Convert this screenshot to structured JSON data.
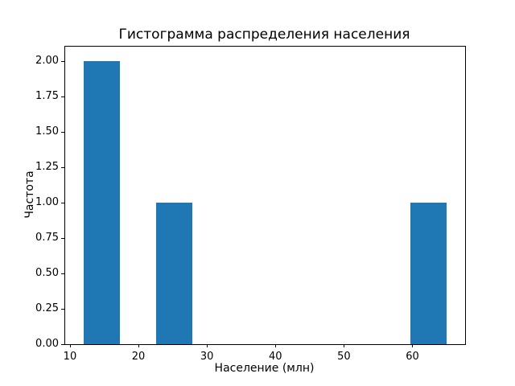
{
  "chart_data": {
    "type": "bar",
    "subtype": "histogram",
    "title": "Гистограмма распределения населения",
    "xlabel": "Население (млн)",
    "ylabel": "Частота",
    "bar_color": "#1f77b4",
    "axis_color": "#000000",
    "background_color": "#ffffff",
    "grid": false,
    "legend": false,
    "xlim": [
      9.3,
      67.7
    ],
    "ylim": [
      0,
      2.1
    ],
    "x_ticks": [
      10,
      20,
      30,
      40,
      50,
      60
    ],
    "y_ticks": [
      "0.00",
      "0.25",
      "0.50",
      "0.75",
      "1.00",
      "1.25",
      "1.50",
      "1.75",
      "2.00"
    ],
    "bars": [
      {
        "x_start": 12.0,
        "x_end": 17.3,
        "height": 2
      },
      {
        "x_start": 22.6,
        "x_end": 27.9,
        "height": 1
      },
      {
        "x_start": 59.7,
        "x_end": 65.0,
        "height": 1
      }
    ]
  }
}
